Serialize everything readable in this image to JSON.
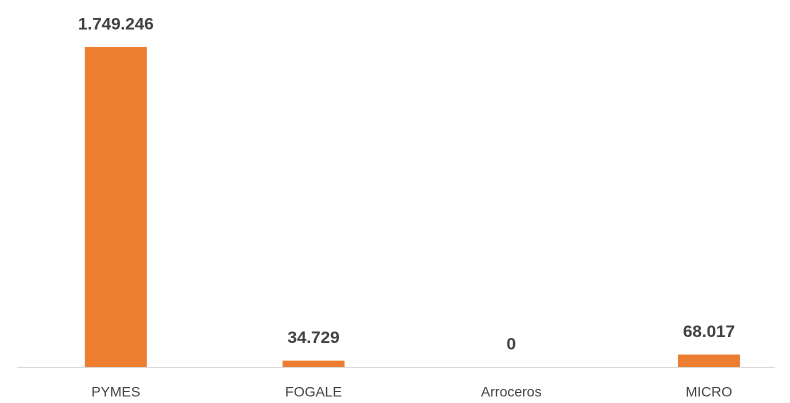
{
  "chart_data": {
    "type": "bar",
    "categories": [
      "PYMES",
      "FOGALE",
      "Arroceros",
      "MICRO"
    ],
    "values": [
      1749246,
      34729,
      0,
      68017
    ],
    "value_labels": [
      "1.749.246",
      "34.729",
      "0",
      "68.017"
    ],
    "color": "#ed7d31"
  }
}
